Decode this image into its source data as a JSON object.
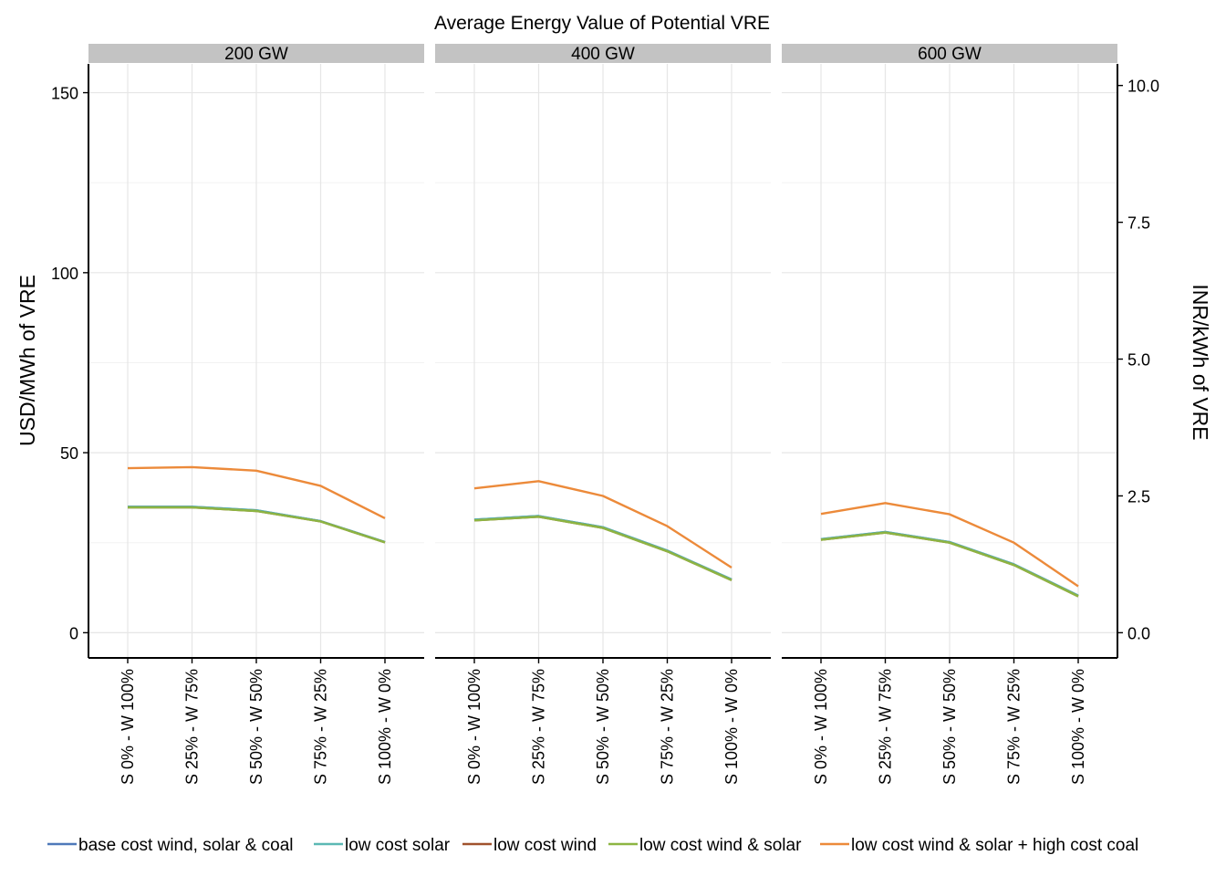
{
  "chart_data": {
    "type": "line",
    "title": "Average Energy Value of Potential VRE",
    "ylabel": "USD/MWh of VRE",
    "ylabel_right": "INR/kWh of VRE",
    "xlabel": "",
    "ylim": [
      -7,
      158
    ],
    "yticks": [
      0,
      50,
      100,
      150
    ],
    "yticks_right": [
      "0.0",
      "2.5",
      "5.0",
      "7.5",
      "10.0"
    ],
    "yticks_right_values": [
      0,
      2.5,
      5.0,
      7.5,
      10.0
    ],
    "right_axis_factor": 15.2,
    "categories": [
      "S 0% - W 100%",
      "S 25% - W 75%",
      "S 50% - W 50%",
      "S 75% - W 25%",
      "S 100% - W 0%"
    ],
    "legend_position": "bottom",
    "grid": true,
    "panels": [
      {
        "label": "200 GW",
        "series": [
          {
            "name": "base cost wind, solar & coal",
            "values": [
              35.0,
              35.0,
              34.0,
              31.0,
              25.2
            ]
          },
          {
            "name": "low cost solar",
            "values": [
              35.0,
              35.0,
              34.0,
              31.0,
              25.2
            ]
          },
          {
            "name": "low cost wind",
            "values": [
              34.8,
              34.8,
              33.8,
              30.9,
              25.1
            ]
          },
          {
            "name": "low cost wind & solar",
            "values": [
              34.8,
              34.8,
              33.8,
              30.9,
              25.1
            ]
          },
          {
            "name": "low cost wind & solar + high cost coal",
            "values": [
              45.7,
              46.0,
              45.0,
              40.8,
              31.8
            ]
          }
        ]
      },
      {
        "label": "400 GW",
        "series": [
          {
            "name": "base cost wind, solar & coal",
            "values": [
              31.4,
              32.4,
              29.3,
              22.8,
              14.8
            ]
          },
          {
            "name": "low cost solar",
            "values": [
              31.4,
              32.4,
              29.3,
              22.8,
              14.8
            ]
          },
          {
            "name": "low cost wind",
            "values": [
              31.2,
              32.2,
              29.1,
              22.6,
              14.6
            ]
          },
          {
            "name": "low cost wind & solar",
            "values": [
              31.2,
              32.2,
              29.1,
              22.6,
              14.6
            ]
          },
          {
            "name": "low cost wind & solar + high cost coal",
            "values": [
              40.1,
              42.1,
              38.0,
              29.6,
              18.1
            ]
          }
        ]
      },
      {
        "label": "600 GW",
        "series": [
          {
            "name": "base cost wind, solar & coal",
            "values": [
              26.0,
              28.0,
              25.2,
              19.0,
              10.3
            ]
          },
          {
            "name": "low cost solar",
            "values": [
              26.0,
              28.0,
              25.2,
              19.0,
              10.3
            ]
          },
          {
            "name": "low cost wind",
            "values": [
              25.8,
              27.8,
              25.0,
              18.8,
              10.1
            ]
          },
          {
            "name": "low cost wind & solar",
            "values": [
              25.8,
              27.8,
              25.0,
              18.8,
              10.1
            ]
          },
          {
            "name": "low cost wind & solar + high cost coal",
            "values": [
              33.0,
              36.0,
              32.9,
              25.0,
              12.9
            ]
          }
        ]
      }
    ],
    "legend": [
      {
        "name": "base cost wind, solar & coal",
        "color": "#4e79b9"
      },
      {
        "name": "low cost solar",
        "color": "#5bb8b4"
      },
      {
        "name": "low cost wind",
        "color": "#a0522d"
      },
      {
        "name": "low cost wind & solar",
        "color": "#8db542"
      },
      {
        "name": "low cost wind & solar + high cost coal",
        "color": "#ec8a3a"
      }
    ]
  }
}
